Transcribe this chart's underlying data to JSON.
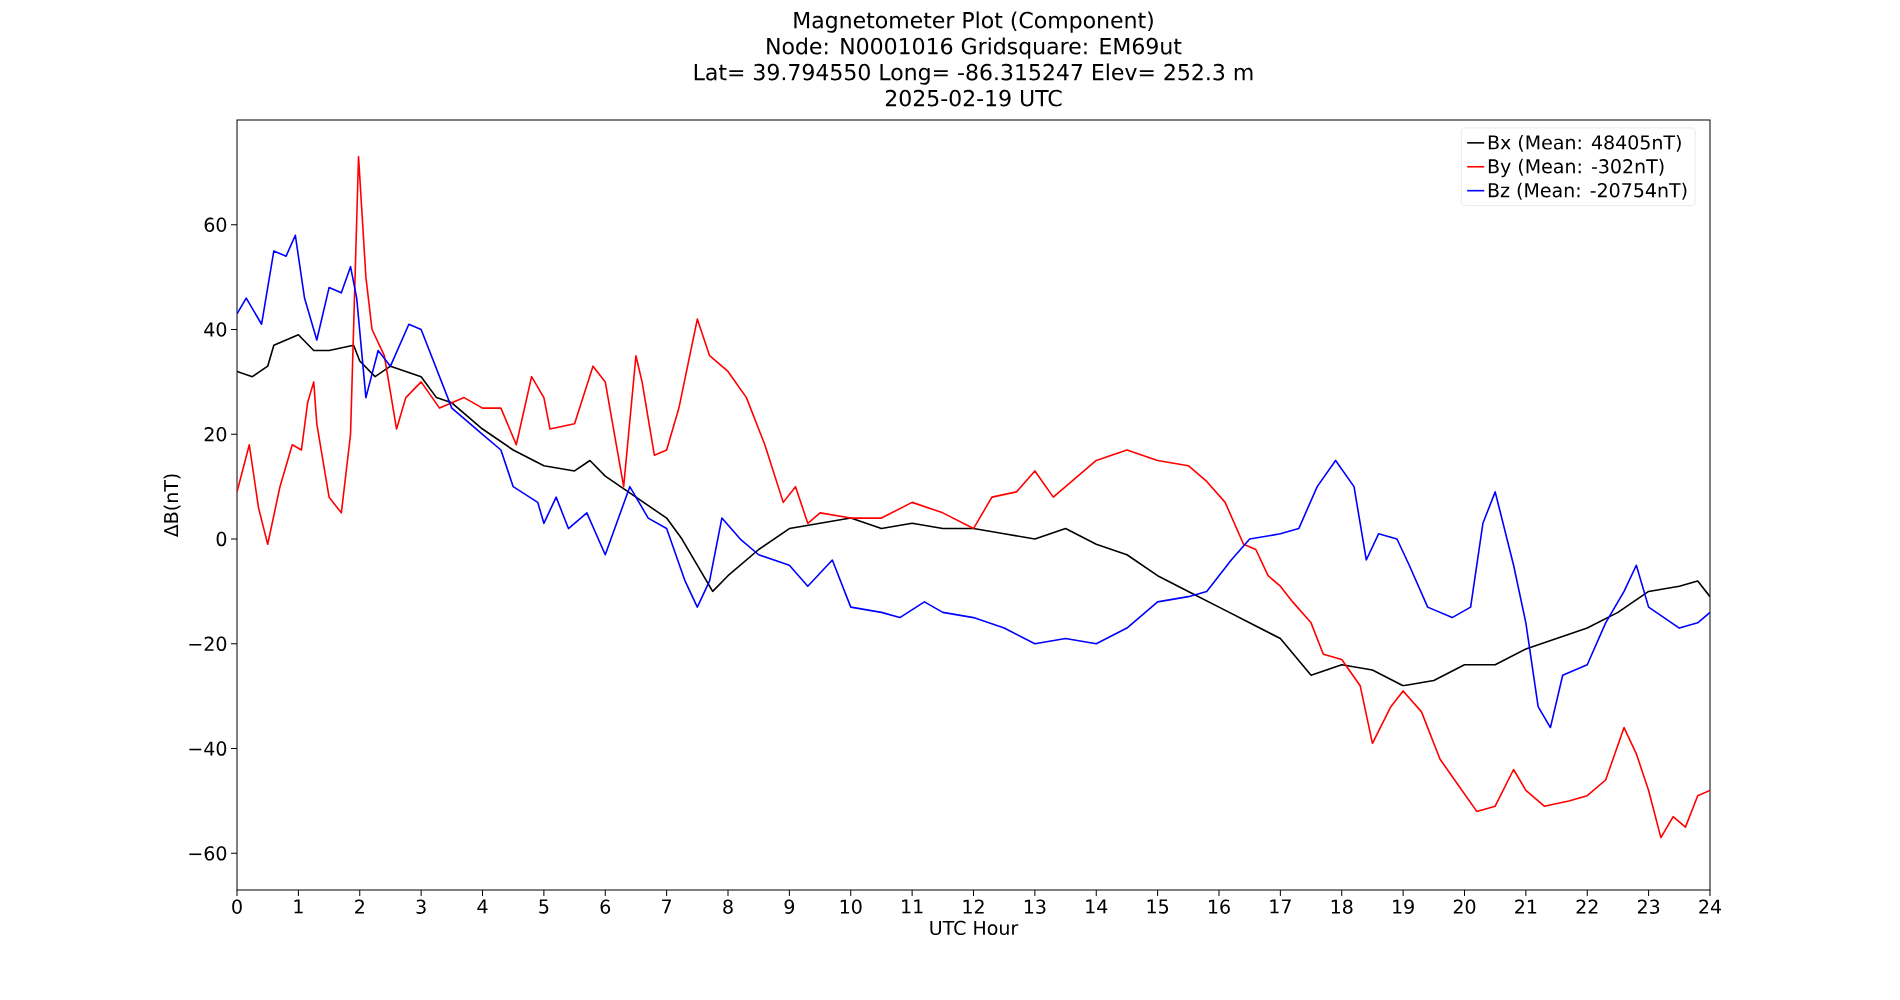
{
  "chart_data": {
    "type": "line",
    "title": "Magnetometer Plot (Component)",
    "subtitle": "Node:  N0001016     Gridsquare:  EM69ut",
    "annotations": [
      "Lat= 39.794550    Long= -86.315247    Elev= 252.3 m",
      "2025-02-19  UTC"
    ],
    "xlabel": "UTC Hour",
    "ylabel": "ΔB(nT)",
    "xlim": [
      0,
      24
    ],
    "ylim": [
      -67,
      80
    ],
    "xticks": [
      0,
      1,
      2,
      3,
      4,
      5,
      6,
      7,
      8,
      9,
      10,
      11,
      12,
      13,
      14,
      15,
      16,
      17,
      18,
      19,
      20,
      21,
      22,
      23,
      24
    ],
    "yticks": [
      {
        "value": -60,
        "label": "−60"
      },
      {
        "value": -40,
        "label": "−40"
      },
      {
        "value": -20,
        "label": "−20"
      },
      0,
      20,
      40,
      60
    ],
    "grid": false,
    "legend": "top right",
    "marker": "none",
    "line_style": "solid",
    "series": [
      {
        "name": "Bx (Mean: 48405nT)",
        "color": "#000000",
        "x": [
          0,
          0.25,
          0.5,
          0.6,
          1.0,
          1.25,
          1.5,
          1.9,
          2.0,
          2.25,
          2.5,
          3.0,
          3.25,
          3.5,
          4,
          4.5,
          5,
          5.5,
          5.75,
          6,
          6.5,
          7,
          7.25,
          7.5,
          7.75,
          8,
          8.5,
          9,
          9.5,
          10,
          10.5,
          11,
          11.5,
          12,
          12.5,
          13,
          13.5,
          14,
          14.5,
          15,
          15.5,
          16,
          16.5,
          17,
          17.5,
          18,
          18.5,
          19,
          19.5,
          20,
          20.5,
          21,
          21.5,
          22,
          22.5,
          23,
          23.5,
          23.8,
          24
        ],
        "values": [
          32,
          31,
          33,
          37,
          39,
          36,
          36,
          37,
          34,
          31,
          33,
          31,
          27,
          26,
          21,
          17,
          14,
          13,
          15,
          12,
          8,
          4,
          0,
          -5,
          -10,
          -7,
          -2,
          2,
          3,
          4,
          2,
          3,
          2,
          2,
          1,
          0,
          2,
          -1,
          -3,
          -7,
          -10,
          -13,
          -16,
          -19,
          -26,
          -24,
          -25,
          -28,
          -27,
          -24,
          -24,
          -21,
          -19,
          -17,
          -14,
          -10,
          -9,
          -8,
          -11
        ]
      },
      {
        "name": "By (Mean: -302nT)",
        "color": "#ff0000",
        "x": [
          0,
          0.2,
          0.35,
          0.5,
          0.7,
          0.9,
          1.05,
          1.15,
          1.25,
          1.3,
          1.5,
          1.7,
          1.85,
          1.98,
          2.1,
          2.2,
          2.4,
          2.6,
          2.75,
          3.0,
          3.3,
          3.7,
          4,
          4.3,
          4.55,
          4.8,
          5.0,
          5.1,
          5.5,
          5.8,
          6.0,
          6.3,
          6.5,
          6.6,
          6.8,
          7.0,
          7.2,
          7.5,
          7.7,
          8,
          8.3,
          8.6,
          8.9,
          9.1,
          9.3,
          9.5,
          10,
          10.5,
          11,
          11.5,
          12,
          12.3,
          12.7,
          13,
          13.3,
          13.5,
          14,
          14.5,
          15,
          15.5,
          15.8,
          16.1,
          16.4,
          16.6,
          16.8,
          17,
          17.2,
          17.5,
          17.7,
          18,
          18.3,
          18.5,
          18.8,
          19,
          19.3,
          19.6,
          19.9,
          20.2,
          20.5,
          20.8,
          21,
          21.3,
          21.7,
          22,
          22.3,
          22.6,
          22.8,
          23,
          23.2,
          23.4,
          23.6,
          23.8,
          24
        ],
        "values": [
          9,
          18,
          6,
          -1,
          10,
          18,
          17,
          26,
          30,
          22,
          8,
          5,
          20,
          73,
          50,
          40,
          35,
          21,
          27,
          30,
          25,
          27,
          25,
          25,
          18,
          31,
          27,
          21,
          22,
          33,
          30,
          10,
          35,
          30,
          16,
          17,
          25,
          42,
          35,
          32,
          27,
          18,
          7,
          10,
          3,
          5,
          4,
          4,
          7,
          5,
          2,
          8,
          9,
          13,
          8,
          10,
          15,
          17,
          15,
          14,
          11,
          7,
          -1,
          -2,
          -7,
          -9,
          -12,
          -16,
          -22,
          -23,
          -28,
          -39,
          -32,
          -29,
          -33,
          -42,
          -47,
          -52,
          -51,
          -44,
          -48,
          -51,
          -50,
          -49,
          -46,
          -36,
          -41,
          -48,
          -57,
          -53,
          -55,
          -49,
          -48
        ]
      },
      {
        "name": "Bz (Mean: -20754nT)",
        "color": "#0000ff",
        "x": [
          0,
          0.15,
          0.4,
          0.6,
          0.8,
          0.95,
          1.1,
          1.3,
          1.5,
          1.7,
          1.85,
          1.95,
          2.1,
          2.3,
          2.5,
          2.8,
          3.0,
          3.5,
          4,
          4.3,
          4.5,
          4.9,
          5.0,
          5.2,
          5.4,
          5.7,
          6,
          6.4,
          6.7,
          7,
          7.3,
          7.5,
          7.7,
          7.9,
          8.2,
          8.5,
          9,
          9.3,
          9.7,
          10,
          10.5,
          10.8,
          11.2,
          11.5,
          12,
          12.5,
          13,
          13.5,
          14,
          14.5,
          15,
          15.5,
          15.8,
          16.2,
          16.5,
          17,
          17.3,
          17.6,
          17.9,
          18.2,
          18.4,
          18.6,
          18.9,
          19.1,
          19.4,
          19.8,
          20.1,
          20.3,
          20.5,
          20.8,
          21.0,
          21.2,
          21.4,
          21.6,
          22,
          22.3,
          22.6,
          22.8,
          23,
          23.5,
          23.8,
          24
        ],
        "values": [
          43,
          46,
          41,
          55,
          54,
          58,
          46,
          38,
          48,
          47,
          52,
          46,
          27,
          36,
          33,
          41,
          40,
          25,
          20,
          17,
          10,
          7,
          3,
          8,
          2,
          5,
          -3,
          10,
          4,
          2,
          -8,
          -13,
          -8,
          4,
          0,
          -3,
          -5,
          -9,
          -4,
          -13,
          -14,
          -15,
          -12,
          -14,
          -15,
          -17,
          -20,
          -19,
          -20,
          -17,
          -12,
          -11,
          -10,
          -4,
          0,
          1,
          2,
          10,
          15,
          10,
          -4,
          1,
          0,
          -5,
          -13,
          -15,
          -13,
          3,
          9,
          -5,
          -16,
          -32,
          -36,
          -26,
          -24,
          -16,
          -10,
          -5,
          -13,
          -17,
          -16,
          -14
        ]
      }
    ]
  }
}
